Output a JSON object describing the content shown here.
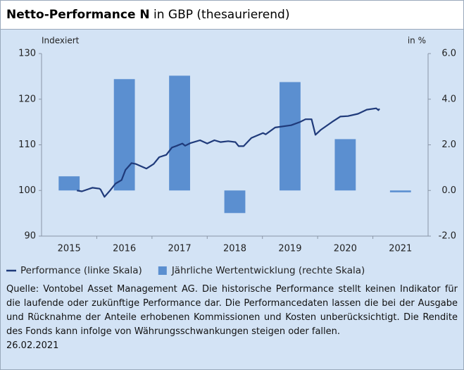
{
  "chart_data": {
    "type": "combo",
    "title": "Netto-Performance N",
    "subtitle": "in GBP (thesaurierend)",
    "ylabel": "Indexiert",
    "y2label": "in %",
    "categories": [
      "2015",
      "2016",
      "2017",
      "2018",
      "2019",
      "2020",
      "2021"
    ],
    "xlim": [
      2015,
      2022
    ],
    "ylim": [
      90,
      130
    ],
    "yticks": [
      90,
      100,
      110,
      120,
      130
    ],
    "y2lim": [
      -2,
      6
    ],
    "y2ticks": [
      {
        "value": -2,
        "label": "-2.0"
      },
      {
        "value": 0,
        "label": "0.0"
      },
      {
        "value": 2,
        "label": "2.0"
      },
      {
        "value": 4,
        "label": "4.0"
      },
      {
        "value": 6,
        "label": "6.0"
      }
    ],
    "grid": false,
    "series": [
      {
        "name": "Performance (linke Skala)",
        "type": "line",
        "color": "#1f3a7a",
        "x": [
          2015.64,
          2015.73,
          2015.92,
          2016.05,
          2016.07,
          2016.14,
          2016.24,
          2016.34,
          2016.45,
          2016.52,
          2016.63,
          2016.71,
          2016.9,
          2017.03,
          2017.13,
          2017.26,
          2017.36,
          2017.45,
          2017.55,
          2017.6,
          2017.7,
          2017.87,
          2018.0,
          2018.13,
          2018.24,
          2018.38,
          2018.51,
          2018.57,
          2018.66,
          2018.8,
          2019.01,
          2019.06,
          2019.23,
          2019.52,
          2019.68,
          2019.78,
          2019.89,
          2019.96,
          2020.06,
          2020.26,
          2020.41,
          2020.55,
          2020.73,
          2020.89,
          2021.06,
          2021.1,
          2021.12
        ],
        "values": [
          100,
          99.8,
          100.6,
          100.4,
          100.2,
          98.6,
          100,
          101.5,
          102.3,
          104.5,
          106,
          105.8,
          104.8,
          105.8,
          107.3,
          107.8,
          109.4,
          109.8,
          110.3,
          109.8,
          110.4,
          111,
          110.3,
          111,
          110.6,
          110.8,
          110.6,
          109.7,
          109.7,
          111.5,
          112.6,
          112.3,
          113.8,
          114.3,
          115,
          115.6,
          115.6,
          112.2,
          113.3,
          115,
          116.2,
          116.3,
          116.8,
          117.7,
          118,
          117.6,
          117.9
        ]
      },
      {
        "name": "Jährliche Wertentwicklung (rechte Skala)",
        "type": "bar",
        "axis": "y2",
        "color": "#5b8fd0",
        "values": [
          0.62,
          4.88,
          5.03,
          -0.99,
          4.75,
          2.25,
          -0.08
        ]
      }
    ],
    "note": "Quelle: Vontobel Asset Management AG. Die historische Performance stellt keinen Indikator für die laufende oder zukünftige Performance dar. Die Performancedaten lassen die bei der Ausgabe und Rücknahme der Anteile erhobenen Kommissionen und Kosten unberücksichtigt. Die Rendite des Fonds kann infolge von Währungsschwankungen steigen oder fallen.",
    "date": "26.02.2021"
  }
}
